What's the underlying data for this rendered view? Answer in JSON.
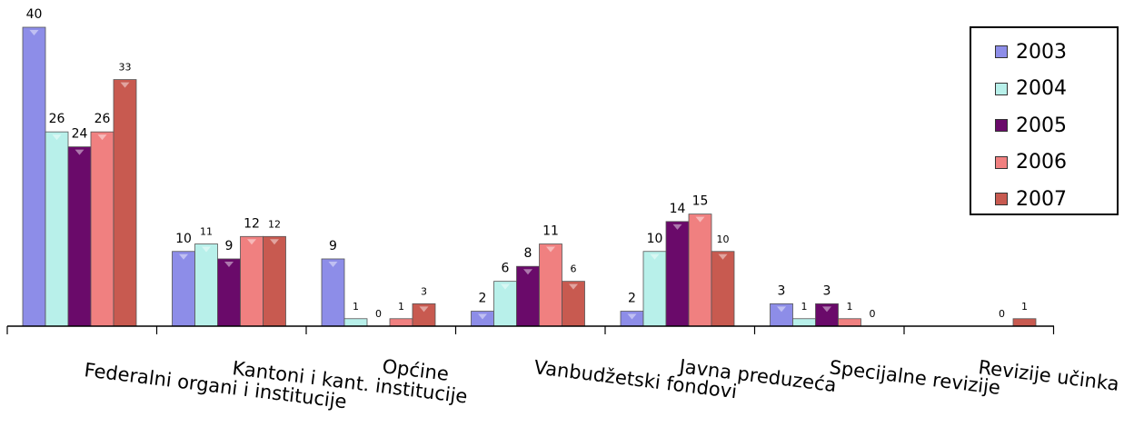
{
  "chart_data": {
    "type": "bar",
    "categories": [
      "Federalni organi i institucije",
      "Kantoni i kant. institucije",
      "Općine",
      "Vanbudžetski fondovi",
      "Javna preduzeća",
      "Specijalne revizije",
      "Revizije učinka"
    ],
    "series": [
      {
        "name": "2003",
        "color": "#8d8de8",
        "values": [
          40,
          10,
          9,
          2,
          2,
          3,
          null
        ]
      },
      {
        "name": "2004",
        "color": "#b8f0ea",
        "values": [
          26,
          11,
          1,
          6,
          10,
          1,
          null
        ]
      },
      {
        "name": "2005",
        "color": "#6a0a6a",
        "values": [
          24,
          9,
          0,
          8,
          14,
          3,
          null
        ]
      },
      {
        "name": "2006",
        "color": "#f08080",
        "values": [
          26,
          12,
          1,
          11,
          15,
          1,
          0
        ]
      },
      {
        "name": "2007",
        "color": "#c85a50",
        "values": [
          33,
          12,
          3,
          6,
          10,
          0,
          1
        ]
      }
    ],
    "ylim": [
      0,
      40
    ],
    "grid": false,
    "legend_position": "top-right"
  }
}
